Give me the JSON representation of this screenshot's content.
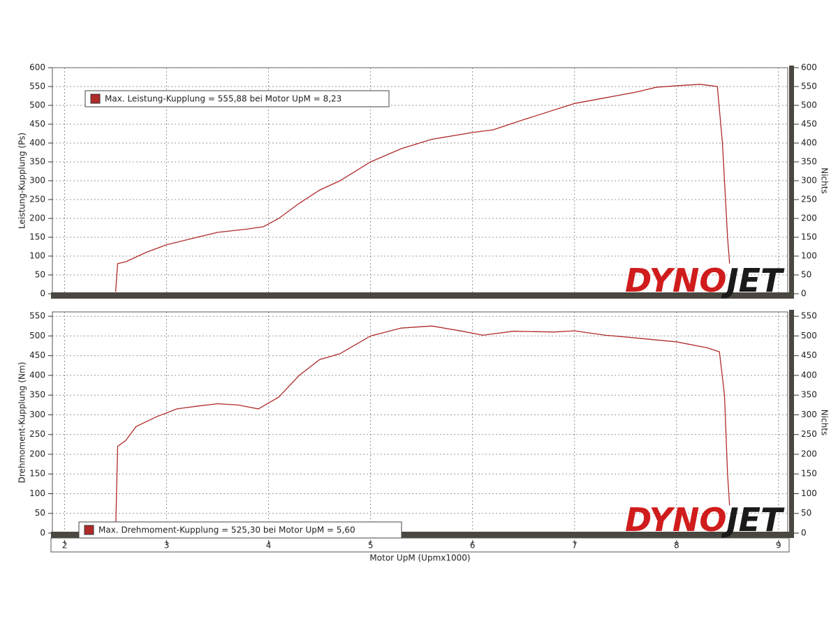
{
  "logo": {
    "red": "DYNO",
    "dark": "JET"
  },
  "chart_data": [
    {
      "type": "line",
      "ylabel": "Leistung-Kupplung (Ps)",
      "y2label": "Nichts",
      "x": [
        2.5,
        2.52,
        2.6,
        2.8,
        3.0,
        3.3,
        3.5,
        3.8,
        3.95,
        4.1,
        4.3,
        4.5,
        4.7,
        5.0,
        5.3,
        5.6,
        6.0,
        6.2,
        6.5,
        7.0,
        7.3,
        7.6,
        7.8,
        8.0,
        8.23,
        8.4,
        8.45,
        8.5,
        8.52
      ],
      "series": [
        {
          "name": "Max. Leistung-Kupplung = 555,88 bei Motor UpM = 8,23",
          "color": "#b02a2a",
          "values": [
            5,
            80,
            85,
            110,
            130,
            150,
            163,
            172,
            178,
            200,
            240,
            275,
            300,
            350,
            385,
            410,
            428,
            435,
            462,
            505,
            520,
            535,
            548,
            552,
            555.88,
            550,
            400,
            150,
            80
          ]
        }
      ],
      "xlim": [
        1.88,
        9.09
      ],
      "xticks": [
        2,
        3,
        4,
        5,
        6,
        7,
        8,
        9
      ],
      "ylim": [
        0,
        600
      ],
      "yticks": [
        0,
        50,
        100,
        150,
        200,
        250,
        300,
        350,
        400,
        450,
        500,
        550,
        600
      ],
      "y2lim": [
        0,
        600
      ],
      "y2ticks": [
        0,
        50,
        100,
        150,
        200,
        250,
        300,
        350,
        400,
        450,
        500,
        550,
        600
      ],
      "grid": true,
      "legend": "top-left"
    },
    {
      "type": "line",
      "ylabel": "Drehmoment-Kupplung (Nm)",
      "y2label": "Nichts",
      "xlabel": "Motor UpM (Upmx1000)",
      "x": [
        2.5,
        2.52,
        2.6,
        2.7,
        2.9,
        3.1,
        3.3,
        3.5,
        3.7,
        3.9,
        4.1,
        4.3,
        4.5,
        4.7,
        5.0,
        5.3,
        5.6,
        5.9,
        6.1,
        6.4,
        6.8,
        7.0,
        7.3,
        7.6,
        8.0,
        8.3,
        8.42,
        8.47,
        8.5,
        8.52
      ],
      "series": [
        {
          "name": "Max. Drehmoment-Kupplung = 525,30 bei Motor UpM = 5,60",
          "color": "#b02a2a",
          "values": [
            0,
            220,
            235,
            270,
            295,
            315,
            322,
            328,
            325,
            315,
            345,
            400,
            440,
            455,
            500,
            520,
            525.3,
            512,
            502,
            512,
            510,
            513,
            502,
            495,
            485,
            470,
            460,
            350,
            150,
            70
          ]
        }
      ],
      "xlim": [
        1.88,
        9.09
      ],
      "xticks": [
        2,
        3,
        4,
        5,
        6,
        7,
        8,
        9
      ],
      "ylim": [
        0,
        561
      ],
      "yticks": [
        0,
        50,
        100,
        150,
        200,
        250,
        300,
        350,
        400,
        450,
        500,
        550
      ],
      "y2lim": [
        0,
        561
      ],
      "y2ticks": [
        0,
        50,
        100,
        150,
        200,
        250,
        300,
        350,
        400,
        450,
        500,
        550
      ],
      "grid": true,
      "legend": "bottom-left"
    }
  ]
}
